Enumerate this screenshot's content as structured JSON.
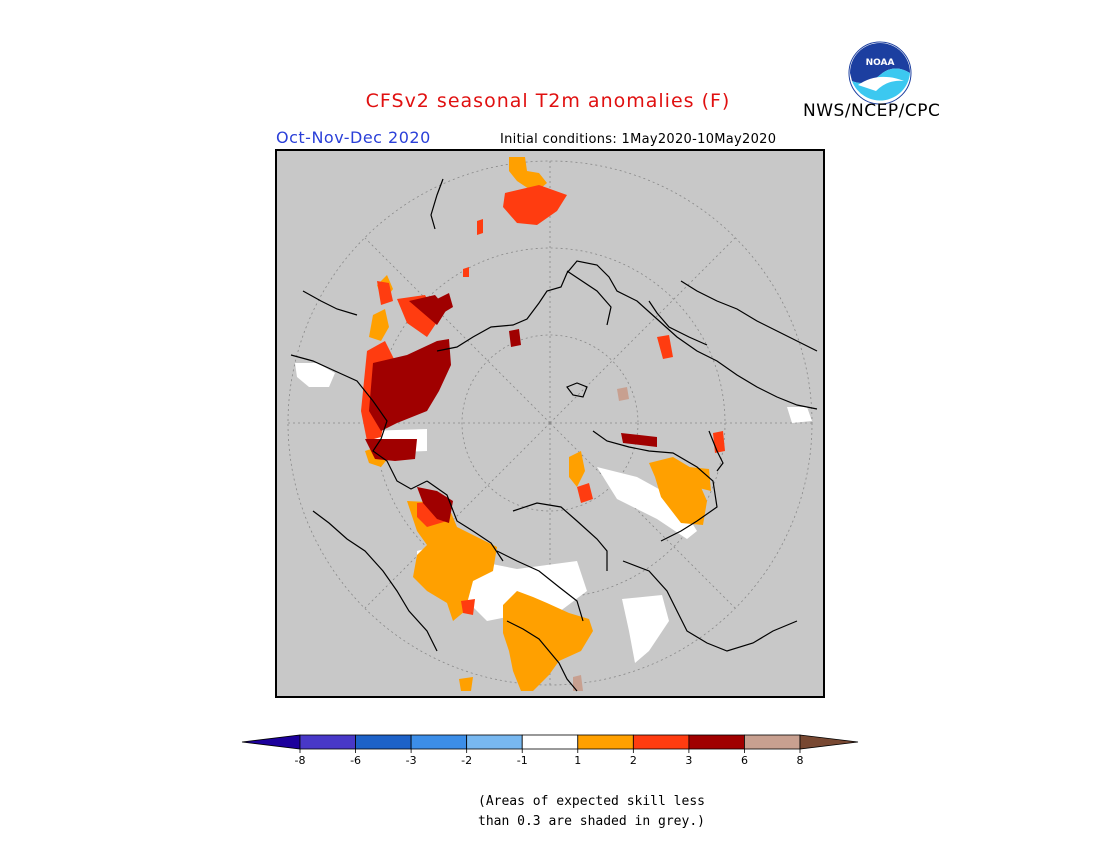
{
  "title": "CFSv2 seasonal T2m anomalies (F)",
  "agency": "NWS/NCEP/CPC",
  "logo_text": "NOAA",
  "season": "Oct-Nov-Dec 2020",
  "initial_conditions": "Initial conditions: 1May2020-10May2020",
  "colors": {
    "title": "#e01010",
    "season": "#2a3fd8",
    "background_grey": "#c8c8c8"
  },
  "colorbar": {
    "bins": [
      {
        "color": "#1c009c"
      },
      {
        "color": "#4838c8"
      },
      {
        "color": "#1d62c8"
      },
      {
        "color": "#3c8ee8"
      },
      {
        "color": "#78b8f0"
      },
      {
        "color": "#ffffff"
      },
      {
        "color": "#ffa000"
      },
      {
        "color": "#ff3c10"
      },
      {
        "color": "#a00000"
      },
      {
        "color": "#c8a090"
      },
      {
        "color": "#784832"
      }
    ],
    "tick_labels": [
      "-8",
      "-6",
      "-3",
      "-2",
      "-1",
      "1",
      "2",
      "3",
      "6",
      "8"
    ]
  },
  "note": {
    "line1": "(Areas of expected skill less",
    "line2": "than 0.3 are shaded in grey.)"
  }
}
